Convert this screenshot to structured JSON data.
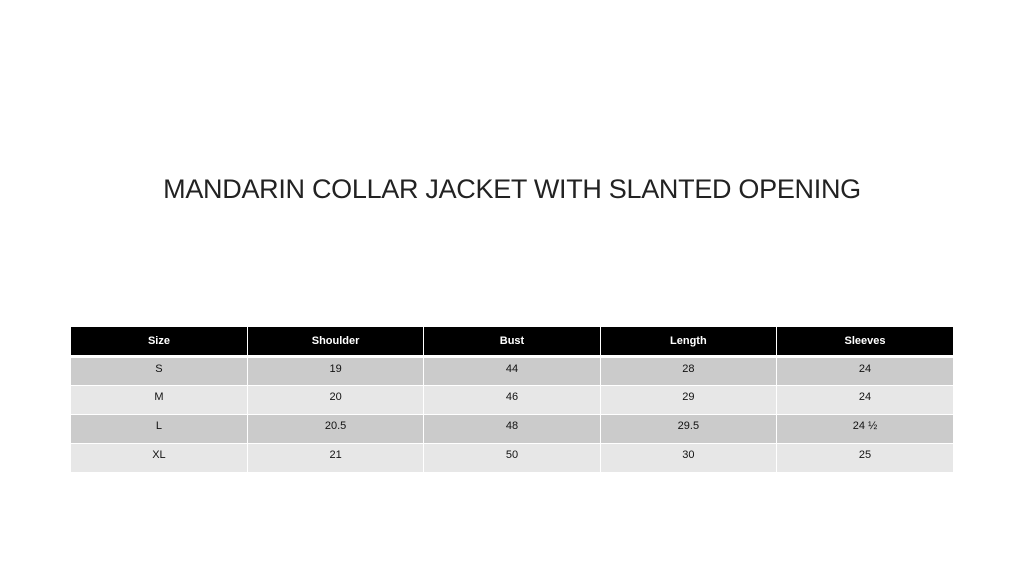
{
  "title": "MANDARIN COLLAR JACKET WITH SLANTED OPENING",
  "table": {
    "headers": [
      "Size",
      "Shoulder",
      "Bust",
      "Length",
      "Sleeves"
    ],
    "rows": [
      [
        "S",
        "19",
        "44",
        "28",
        "24"
      ],
      [
        "M",
        "20",
        "46",
        "29",
        "24"
      ],
      [
        "L",
        "20.5",
        "48",
        "29.5",
        "24 ½"
      ],
      [
        "XL",
        "21",
        "50",
        "30",
        "25"
      ]
    ]
  },
  "colors": {
    "header_bg": "#000000",
    "row_dark": "#cbcbcb",
    "row_light": "#e7e7e7"
  }
}
